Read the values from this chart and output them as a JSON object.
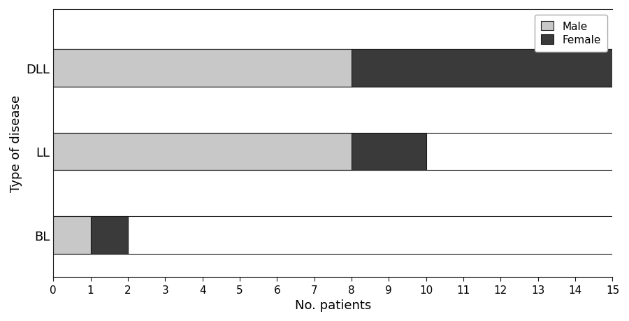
{
  "categories": [
    "BL",
    "LL",
    "DLL"
  ],
  "male_values": [
    1,
    8,
    8
  ],
  "female_values": [
    1,
    2,
    7
  ],
  "male_color": "#c8c8c8",
  "female_color": "#3a3a3a",
  "male_label": "Male",
  "female_label": "Female",
  "xlabel": "No. patients",
  "ylabel": "Type of disease",
  "xlim": [
    0,
    15
  ],
  "xticks": [
    0,
    1,
    2,
    3,
    4,
    5,
    6,
    7,
    8,
    9,
    10,
    11,
    12,
    13,
    14,
    15
  ],
  "title": "",
  "bar_height": 0.45,
  "figsize": [
    9.0,
    4.6
  ],
  "dpi": 100,
  "background_color": "#ffffff",
  "line_color": "#1a1a1a",
  "legend_fontsize": 11,
  "tick_fontsize": 11,
  "label_fontsize": 13
}
